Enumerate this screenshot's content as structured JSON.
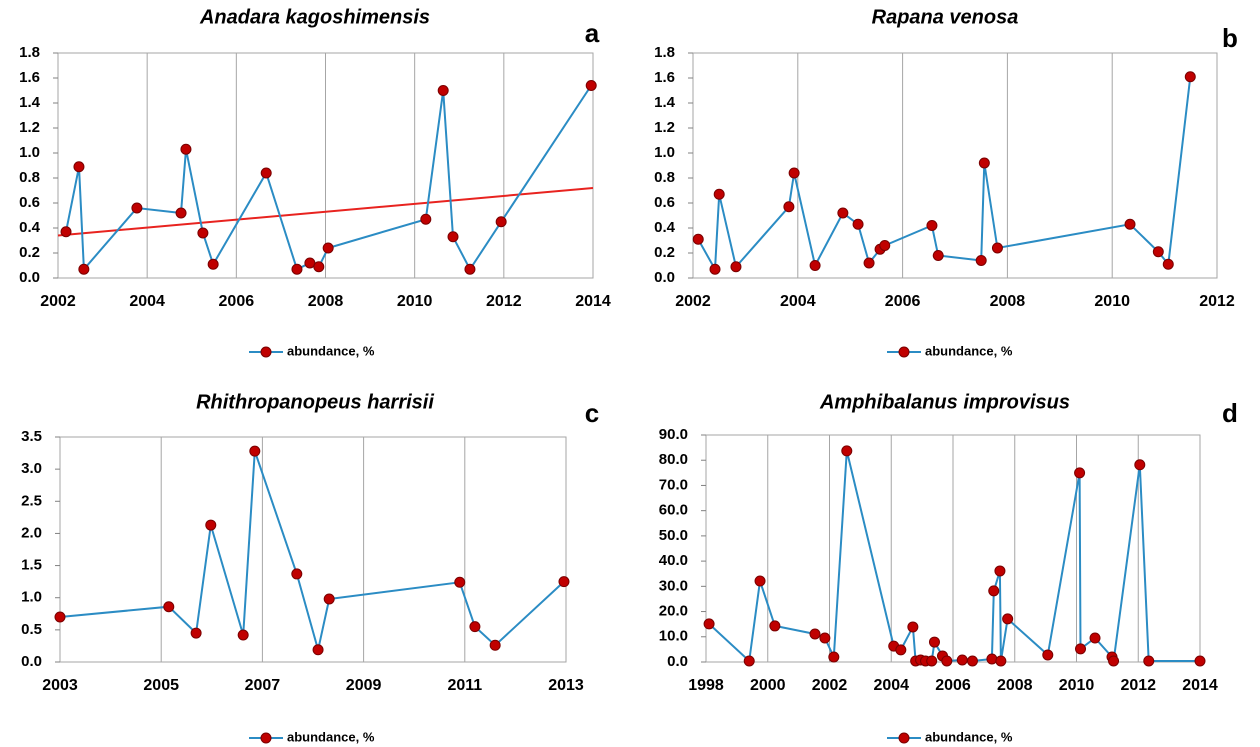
{
  "chart_data": [
    {
      "type": "line",
      "title": "Anadara kagoshimensis",
      "panel_label": "a",
      "x": [
        2002.18,
        2002.47,
        2002.58,
        2003.77,
        2004.76,
        2004.87,
        2005.25,
        2005.48,
        2006.67,
        2007.36,
        2007.65,
        2007.85,
        2008.06,
        2010.25,
        2010.64,
        2010.86,
        2011.24,
        2011.94,
        2013.96
      ],
      "series": [
        {
          "name": "abundance, %",
          "color": "#2b8cc4",
          "marker_color": "#c00000",
          "values": [
            0.37,
            0.89,
            0.07,
            0.56,
            0.52,
            1.03,
            0.36,
            0.11,
            0.84,
            0.07,
            0.12,
            0.09,
            0.24,
            0.47,
            1.5,
            0.33,
            0.07,
            0.45,
            1.54
          ]
        }
      ],
      "trend": {
        "x": [
          2002,
          2014
        ],
        "values": [
          0.34,
          0.72
        ],
        "color": "#e8231f"
      },
      "xlim": [
        2002,
        2014
      ],
      "xticks": [
        2002,
        2004,
        2006,
        2008,
        2010,
        2012,
        2014
      ],
      "ylim": [
        0,
        1.8
      ],
      "yticks": [
        {
          "value": 0,
          "label": "0.0"
        },
        0.2,
        0.4,
        0.6,
        0.8,
        {
          "value": 1,
          "label": "1.0"
        },
        1.2,
        1.4,
        1.6,
        1.8
      ],
      "grid": "x",
      "legend": "bottom"
    },
    {
      "type": "line",
      "title": "Rapana venosa",
      "panel_label": "b",
      "x": [
        2002.1,
        2002.42,
        2002.5,
        2002.82,
        2003.83,
        2003.93,
        2004.33,
        2004.86,
        2005.15,
        2005.36,
        2005.57,
        2005.66,
        2006.56,
        2006.68,
        2007.5,
        2007.56,
        2007.81,
        2010.34,
        2010.88,
        2011.07,
        2011.49
      ],
      "series": [
        {
          "name": "abundance, %",
          "color": "#2b8cc4",
          "marker_color": "#c00000",
          "values": [
            0.31,
            0.07,
            0.67,
            0.09,
            0.57,
            0.84,
            0.1,
            0.52,
            0.43,
            0.12,
            0.23,
            0.26,
            0.42,
            0.18,
            0.14,
            0.92,
            0.24,
            0.43,
            0.21,
            0.11,
            1.61
          ]
        }
      ],
      "xlim": [
        2002,
        2012
      ],
      "xticks": [
        2002,
        2004,
        2006,
        2008,
        2010,
        2012
      ],
      "ylim": [
        0,
        1.8
      ],
      "yticks": [
        {
          "value": 0,
          "label": "0.0"
        },
        0.2,
        0.4,
        0.6,
        0.8,
        {
          "value": 1,
          "label": "1.0"
        },
        1.2,
        1.4,
        1.6,
        1.8
      ],
      "grid": "x",
      "legend": "bottom"
    },
    {
      "type": "line",
      "title": "Rhithropanopeus harrisii",
      "panel_label": "c",
      "x": [
        2003.0,
        2005.15,
        2005.69,
        2005.98,
        2006.62,
        2006.85,
        2007.68,
        2008.1,
        2008.32,
        2010.9,
        2011.2,
        2011.6,
        2012.96
      ],
      "series": [
        {
          "name": "abundance, %",
          "color": "#2b8cc4",
          "marker_color": "#c00000",
          "values": [
            0.7,
            0.86,
            0.45,
            2.13,
            0.42,
            3.28,
            1.37,
            0.19,
            0.98,
            1.24,
            0.55,
            0.26,
            1.25
          ]
        }
      ],
      "xlim": [
        2003,
        2013
      ],
      "xticks": [
        2003,
        2005,
        2007,
        2009,
        2011,
        2013
      ],
      "ylim": [
        0,
        3.5
      ],
      "yticks": [
        {
          "value": 0,
          "label": "0.0"
        },
        0.5,
        {
          "value": 1,
          "label": "1.0"
        },
        1.5,
        {
          "value": 2,
          "label": "2.0"
        },
        2.5,
        {
          "value": 3,
          "label": "3.0"
        },
        3.5
      ],
      "grid": "x",
      "legend": "bottom"
    },
    {
      "type": "line",
      "title": "Amphibalanus improvisus",
      "panel_label": "d",
      "x": [
        1998.1,
        1999.4,
        1999.75,
        2000.23,
        2001.53,
        2001.85,
        2002.14,
        2002.56,
        2004.08,
        2004.31,
        2004.7,
        2004.79,
        2004.95,
        2005.11,
        2005.31,
        2005.4,
        2005.66,
        2005.8,
        2006.3,
        2006.63,
        2007.26,
        2007.32,
        2007.52,
        2007.55,
        2007.77,
        2009.07,
        2010.1,
        2010.13,
        2010.6,
        2011.15,
        2011.2,
        2012.05,
        2012.34,
        2014.0
      ],
      "series": [
        {
          "name": "abundance, %",
          "color": "#2b8cc4",
          "marker_color": "#c00000",
          "values": [
            15.1,
            0.4,
            32.1,
            14.3,
            11.1,
            9.5,
            2.0,
            83.7,
            6.3,
            4.8,
            13.9,
            0.4,
            0.8,
            0.4,
            0.4,
            7.9,
            2.4,
            0.4,
            0.8,
            0.4,
            1.2,
            28.2,
            36.1,
            0.4,
            17.1,
            2.8,
            75.0,
            5.2,
            9.5,
            2.0,
            0.4,
            78.2,
            0.4,
            0.4
          ]
        }
      ],
      "xlim": [
        1998,
        2014
      ],
      "xticks": [
        1998,
        2000,
        2002,
        2004,
        2006,
        2008,
        2010,
        2012,
        2014
      ],
      "ylim": [
        0,
        90
      ],
      "yticks": [
        {
          "value": 0,
          "label": "0.0"
        },
        {
          "value": 10,
          "label": "10.0"
        },
        {
          "value": 20,
          "label": "20.0"
        },
        {
          "value": 30,
          "label": "30.0"
        },
        {
          "value": 40,
          "label": "40.0"
        },
        {
          "value": 50,
          "label": "50.0"
        },
        {
          "value": 60,
          "label": "60.0"
        },
        {
          "value": 70,
          "label": "70.0"
        },
        {
          "value": 80,
          "label": "80.0"
        },
        {
          "value": 90,
          "label": "90.0"
        }
      ],
      "grid": "x",
      "legend": "bottom"
    }
  ]
}
